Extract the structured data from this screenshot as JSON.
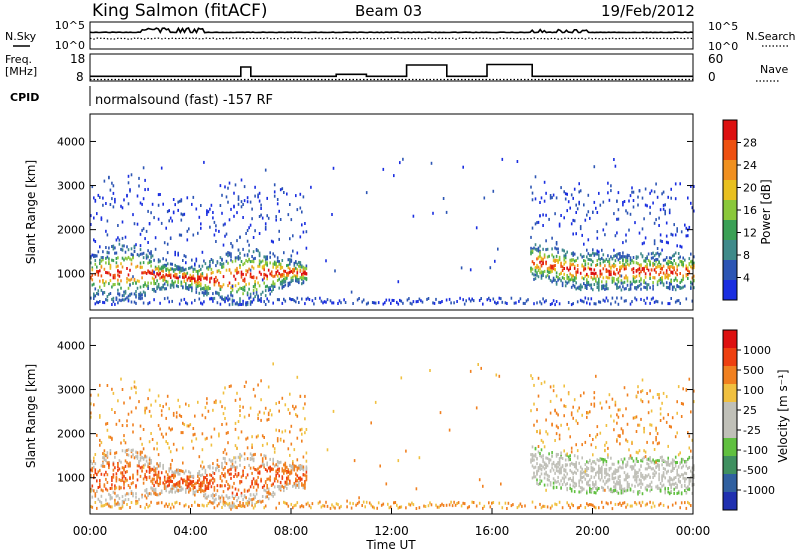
{
  "header": {
    "station": "King Salmon (fitACF)",
    "beam": "Beam 03",
    "date": "19/Feb/2012"
  },
  "noise_panel": {
    "left_label": "N.Sky",
    "right_label": "N.Search",
    "left_ticks": [
      "10^5",
      "10^0"
    ],
    "right_ticks": [
      "10^5",
      "10^0"
    ]
  },
  "freq_panel": {
    "left_label_1": "Freq.",
    "left_label_2": "[MHz]",
    "right_label": "Nave",
    "left_ticks": [
      "18",
      "8"
    ],
    "right_ticks": [
      "60",
      "0"
    ],
    "cpid_label": "CPID",
    "cpid_text": "normalsound (fast) -157 RF"
  },
  "chart_data": [
    {
      "type": "line",
      "name": "noise",
      "y_scale": "log",
      "ylim": [
        1,
        100000
      ],
      "x_range_hours": [
        0,
        24
      ],
      "series": [
        {
          "name": "N.Sky",
          "style": "solid"
        },
        {
          "name": "N.Search",
          "style": "dotted"
        }
      ]
    },
    {
      "type": "line",
      "name": "frequency",
      "ylim": [
        8,
        18
      ],
      "x_hours": [
        0,
        6.0,
        6.0,
        6.4,
        6.4,
        9.8,
        9.8,
        11.0,
        11.0,
        12.6,
        12.6,
        14.2,
        14.2,
        15.8,
        15.8,
        17.6,
        17.6,
        24
      ],
      "freq_mhz": [
        9.5,
        9.5,
        13.2,
        13.2,
        9.5,
        9.5,
        10.3,
        10.3,
        9.5,
        9.5,
        14.0,
        14.0,
        9.5,
        9.5,
        14.2,
        14.2,
        9.5,
        9.5
      ]
    },
    {
      "type": "heatmap",
      "name": "power",
      "ylabel": "Slant Range [km]",
      "yticks": [
        "1000",
        "2000",
        "3000",
        "4000"
      ],
      "ylim": [
        200,
        4600
      ],
      "colorbar_label": "Power [dB]",
      "colorbar_ticks": [
        "4",
        "8",
        "12",
        "16",
        "20",
        "24",
        "28"
      ],
      "colorbar_colors": [
        "#1a2ee0",
        "#2d56b4",
        "#3f8a8a",
        "#3aa055",
        "#8ac83a",
        "#e8c020",
        "#f09020",
        "#ee5010",
        "#dd1010"
      ]
    },
    {
      "type": "heatmap",
      "name": "velocity",
      "ylabel": "Slant Range [km]",
      "yticks": [
        "1000",
        "2000",
        "3000",
        "4000"
      ],
      "ylim": [
        200,
        4600
      ],
      "colorbar_label": "Velocity [m s⁻¹]",
      "colorbar_ticks": [
        "1000",
        "500",
        "100",
        "25",
        "-25",
        "-100",
        "-500",
        "-1000"
      ],
      "colorbar_colors": [
        "#2030b0",
        "#3060a0",
        "#3f9060",
        "#60c040",
        "#c0c0b8",
        "#c0c0b8",
        "#f0c040",
        "#f08020",
        "#ee4010",
        "#dd1010"
      ],
      "xlabel": "Time UT",
      "xticks": [
        "00:00",
        "04:00",
        "08:00",
        "12:00",
        "16:00",
        "20:00",
        "00:00"
      ]
    }
  ]
}
